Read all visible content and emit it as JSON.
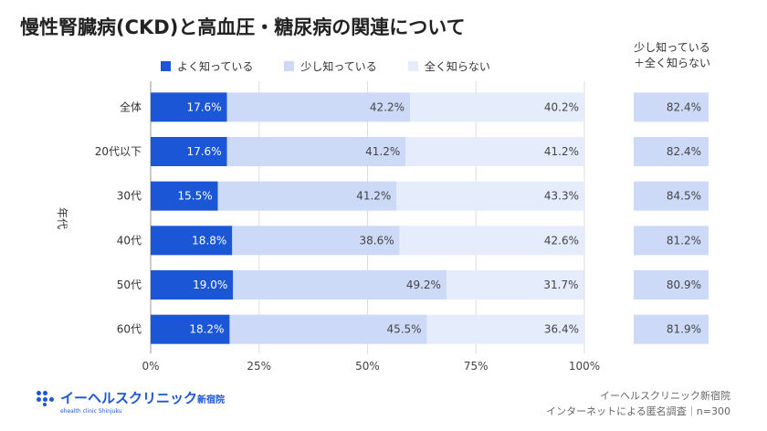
{
  "title": "慢性腎臓病(CKD)と高血圧・糖尿病の関連について",
  "legend": [
    {
      "label": "よく知っている",
      "color": "#1a56d6"
    },
    {
      "label": "少し知っている",
      "color": "#ccdaf7"
    },
    {
      "label": "全く知らない",
      "color": "#e5edfc"
    }
  ],
  "side_header": {
    "line1": "少し知っている",
    "line2": "＋全く知らない"
  },
  "footer": {
    "line1": "イーヘルスクリニック新宿院",
    "line2": "インターネットによる匿名調査｜n=300"
  },
  "logo": {
    "main": "イーヘルスクリニック",
    "small": "新宿院",
    "sub": "ehealth clinic Shinjuku"
  },
  "chart_data": {
    "type": "bar",
    "orientation": "horizontal-stacked-100",
    "ylabel": "年代",
    "categories": [
      "全体",
      "20代以下",
      "30代",
      "40代",
      "50代",
      "60代"
    ],
    "series": [
      {
        "name": "よく知っている",
        "values": [
          17.6,
          17.6,
          15.5,
          18.8,
          19.0,
          18.2
        ],
        "labels": [
          "17.6%",
          "17.6%",
          "15.5%",
          "18.8%",
          "19.0%",
          "18.2%"
        ]
      },
      {
        "name": "少し知っている",
        "values": [
          42.2,
          41.2,
          41.2,
          38.6,
          49.2,
          45.5
        ],
        "labels": [
          "42.2%",
          "41.2%",
          "41.2%",
          "38.6%",
          "49.2%",
          "45.5%"
        ]
      },
      {
        "name": "全く知らない",
        "values": [
          40.2,
          41.2,
          43.3,
          42.6,
          31.7,
          36.4
        ],
        "labels": [
          "40.2%",
          "41.2%",
          "43.3%",
          "42.6%",
          "31.7%",
          "36.4%"
        ]
      }
    ],
    "side_values": [
      82.4,
      82.4,
      84.5,
      81.2,
      80.9,
      81.9
    ],
    "side_labels": [
      "82.4%",
      "82.4%",
      "84.5%",
      "81.2%",
      "80.9%",
      "81.9%"
    ],
    "xticks": [
      "0%",
      "25%",
      "50%",
      "75%",
      "100%"
    ],
    "xlim": [
      0,
      100
    ],
    "grid": true,
    "colors": {
      "dark": "#1a56d6",
      "mid": "#ccdaf7",
      "light": "#e5edfc",
      "side": "#ccdaf7"
    }
  }
}
